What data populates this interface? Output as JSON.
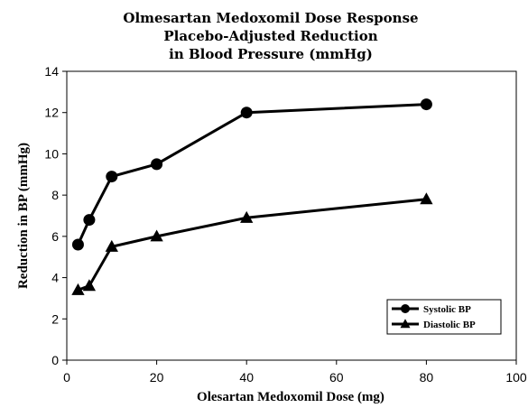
{
  "chart_data": {
    "type": "line",
    "title": [
      "Olmesartan Medoxomil Dose Response",
      "Placebo-Adjusted Reduction",
      "in Blood Pressure (mmHg)"
    ],
    "xlabel": "Olesartan Medoxomil Dose (mg)",
    "ylabel": "Reduction in BP (mmHg)",
    "xlim": [
      0,
      100
    ],
    "ylim": [
      0,
      14
    ],
    "xticks": [
      0,
      20,
      40,
      60,
      80,
      100
    ],
    "yticks": [
      0,
      2,
      4,
      6,
      8,
      10,
      12,
      14
    ],
    "grid": false,
    "legend_position": "bottom-right",
    "series": [
      {
        "name": "Systolic BP",
        "marker": "circle",
        "color": "#000000",
        "x": [
          2.5,
          5,
          10,
          20,
          40,
          80
        ],
        "y": [
          5.6,
          6.8,
          8.9,
          9.5,
          12.0,
          12.4
        ]
      },
      {
        "name": "Diastolic BP",
        "marker": "triangle",
        "color": "#000000",
        "x": [
          2.5,
          5,
          10,
          20,
          40,
          80
        ],
        "y": [
          3.4,
          3.6,
          5.5,
          6.0,
          6.9,
          7.8
        ]
      }
    ]
  }
}
